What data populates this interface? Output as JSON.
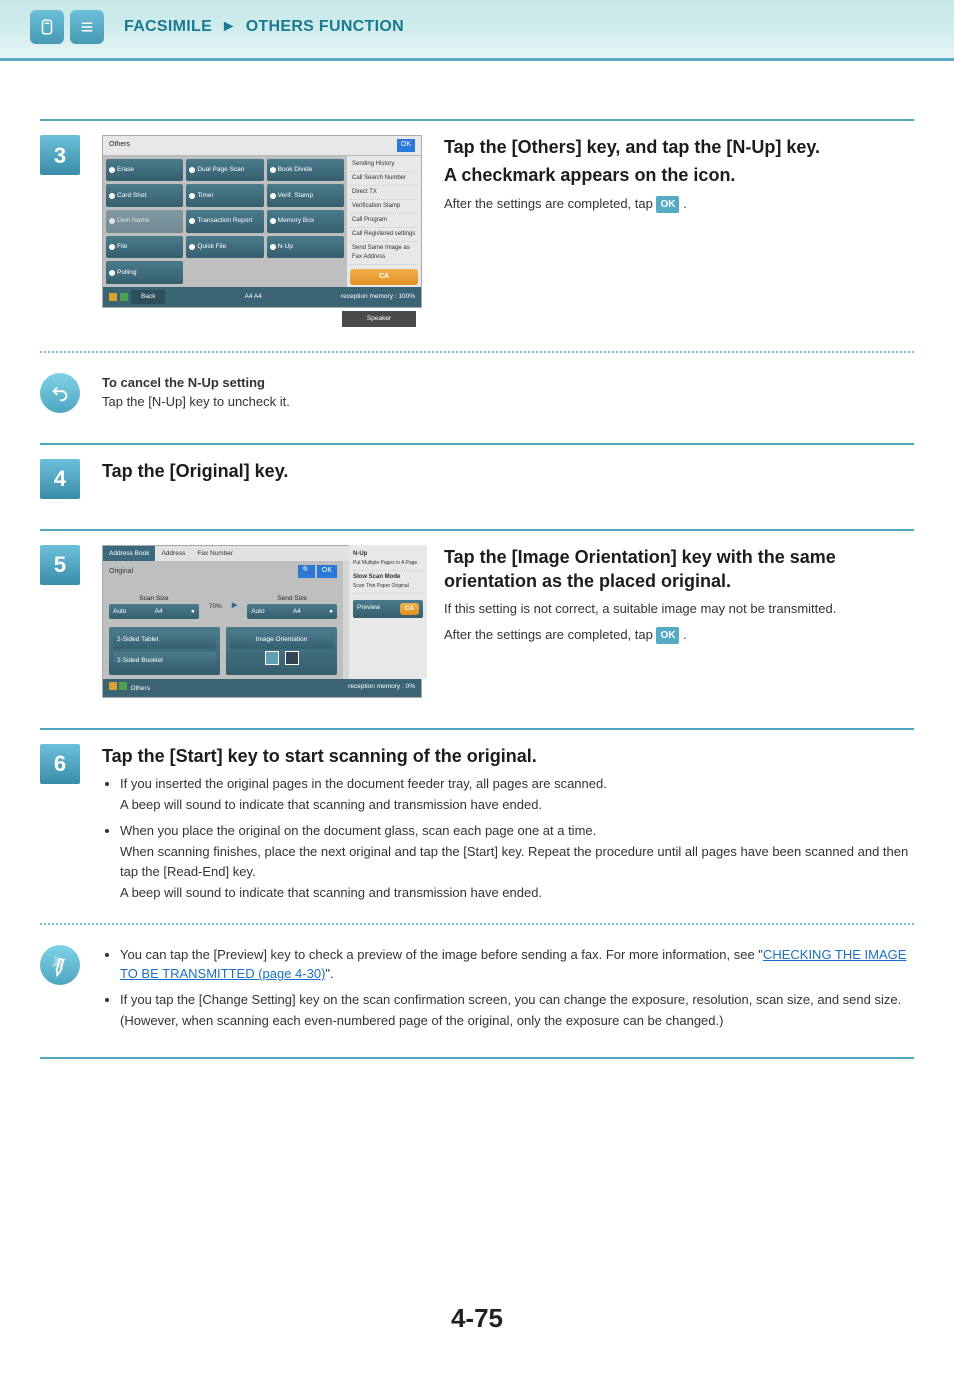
{
  "header": {
    "title_left": "FACSIMILE",
    "title_right": "OTHERS FUNCTION"
  },
  "step3": {
    "num": "3",
    "h1": "Tap the [Others] key, and tap the [N-Up] key.",
    "h2": "A checkmark appears on the icon.",
    "after_line_prefix": "After the settings are completed, tap ",
    "after_line_suffix": ".",
    "ok": "OK",
    "panel": {
      "title": "Others",
      "ok": "OK",
      "cells": [
        "Erase",
        "Dual Page Scan",
        "Book Divide",
        "Card Shot",
        "Timer",
        "Verif. Stamp",
        "Own Name",
        "Transaction Report",
        "Memory Box",
        "File",
        "Quick File",
        "N-Up",
        "Polling"
      ],
      "disabled_indexes": [
        6
      ],
      "side": [
        "Sending History",
        "Call Search Number",
        "Direct TX",
        "Verification Stamp",
        "Call Program",
        "Call Registered settings",
        "Send Same Image as Fax Address"
      ],
      "ca": "CA",
      "back": "Back",
      "footer_sizes": "A4          A4",
      "footer_mem": "reception memory :    100%",
      "speaker": "Speaker"
    }
  },
  "cancel_note": {
    "title": "To cancel the N-Up setting",
    "body": "Tap the [N-Up] key to uncheck it."
  },
  "step4": {
    "num": "4",
    "h1": "Tap the [Original] key."
  },
  "step5": {
    "num": "5",
    "h1": "Tap the [Image Orientation] key with the same orientation as the placed original.",
    "p1": "If this setting is not correct, a suitable image may not be transmitted.",
    "after_line_prefix": "After the settings are completed, tap ",
    "after_line_suffix": ".",
    "ok": "OK",
    "panel": {
      "tabs": [
        "Address Book",
        "Address",
        "Fax Number"
      ],
      "ok": "OK",
      "original": "Original",
      "scan_label": "Scan Size",
      "send_label": "Send Size",
      "auto": "Auto",
      "size": "A4",
      "pct": "70%",
      "two_tablet": "2-Sided Tablet",
      "two_booklet": "2-Sided Booklet",
      "img_ori": "Image Orientation",
      "side": {
        "nup": "N-Up",
        "nup_sub": "Put Multiple Pages in A Page",
        "slow": "Slow Scan Mode",
        "slow_sub": "Scan Thin Paper Original",
        "preview": "Preview",
        "ca": "CA"
      },
      "others": "Others",
      "footer_mem": "reception memory :    0%"
    }
  },
  "step6": {
    "num": "6",
    "h1": "Tap the [Start] key to start scanning of the original.",
    "bullets": [
      {
        "main": "If you inserted the original pages in the document feeder tray, all pages are scanned.",
        "sub": "A beep will sound to indicate that scanning and transmission have ended."
      },
      {
        "main": "When you place the original on the document glass, scan each page one at a time.",
        "sub": "When scanning finishes, place the next original and tap the [Start] key. Repeat the procedure until all pages have been scanned and then tap the [Read-End] key.",
        "sub2": "A beep will sound to indicate that scanning and transmission have ended."
      }
    ]
  },
  "tip_note": {
    "l1_pre": "You can tap the [Preview] key to check a preview of the image before sending a fax. For more information, see \"",
    "l1_link": "CHECKING THE IMAGE TO BE TRANSMITTED (page 4-30)",
    "l1_post": "\".",
    "l2": "If you tap the [Change Setting] key on the scan confirmation screen, you can change the exposure, resolution, scan size, and send size.",
    "l2b": "(However, when scanning each even-numbered page of the original, only the exposure can be changed.)"
  },
  "page_number": "4-75"
}
